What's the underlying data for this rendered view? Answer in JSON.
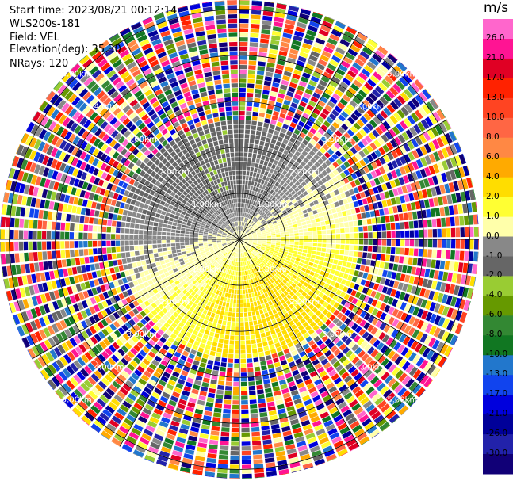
{
  "info": {
    "start_time": "Start time: 2023/08/21 00:12:14",
    "instrument": "WLS200s-181",
    "field": "Field: VEL",
    "elevation": "Elevation(deg): 35.30",
    "nrays": "NRays: 120"
  },
  "colorbar": {
    "unit": "m/s",
    "labels": [
      "26.0",
      "21.0",
      "17.0",
      "13.0",
      "10.0",
      "8.0",
      "6.0",
      "4.0",
      "2.0",
      "1.0",
      "0.0",
      "-1.0",
      "-2.0",
      "-4.0",
      "-6.0",
      "-8.0",
      "-10.0",
      "-13.0",
      "-17.0",
      "-21.0",
      "-26.0",
      "-30.0"
    ],
    "colors": [
      "#ff66cc",
      "#ff1493",
      "#e00024",
      "#ff2200",
      "#ff4422",
      "#ff6644",
      "#ff8844",
      "#ffaa00",
      "#ffdd00",
      "#ffff33",
      "#ffffaa",
      "#888888",
      "#666666",
      "#99cc33",
      "#669900",
      "#338833",
      "#117722",
      "#2277cc",
      "#1144ee",
      "#0000dd",
      "#000099",
      "#2222aa",
      "#110077"
    ]
  },
  "chart_data": {
    "type": "heatmap",
    "projection": "polar PPI",
    "field": "VEL",
    "units": "m/s",
    "elevation_deg": 35.3,
    "n_rays": 120,
    "range_rings_km": [
      1.0,
      2.0,
      3.0,
      4.0,
      5.0
    ],
    "range_ring_labels": [
      "1.00km",
      "2.00km",
      "3.00km",
      "4.00km",
      "5.00km"
    ],
    "max_range_km": 5.2,
    "color_scale": {
      "min": -30.0,
      "max": 26.0
    },
    "gate_spacing_km": 0.1
  }
}
